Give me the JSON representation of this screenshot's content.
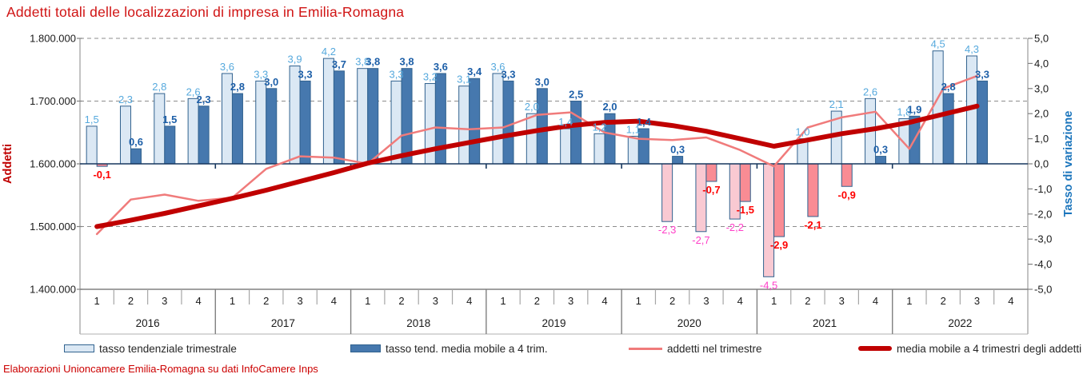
{
  "title": "Addetti totali delle localizzazioni di impresa in Emilia-Romagna",
  "footer": "Elaborazioni Unioncamere Emilia-Romagna su dati InfoCamere Inps",
  "legend": [
    {
      "label": "tasso tendenziale trimestrale",
      "swatch": "bar",
      "color": "#dbe8f4",
      "border": "#31628f"
    },
    {
      "label": "tasso tend. media mobile a 4 trim.",
      "swatch": "bar",
      "color": "#4678ae",
      "border": "#31628f"
    },
    {
      "label": "addetti nel trimestre",
      "swatch": "line",
      "color": "#f07b7b"
    },
    {
      "label": "media mobile a 4 trimestri degli addetti",
      "swatch": "line-thick",
      "color": "#c00000"
    }
  ],
  "chart_data": {
    "type": "combo bar + line, dual axis",
    "categories": [
      "2016-1",
      "2016-2",
      "2016-3",
      "2016-4",
      "2017-1",
      "2017-2",
      "2017-3",
      "2017-4",
      "2018-1",
      "2018-2",
      "2018-3",
      "2018-4",
      "2019-1",
      "2019-2",
      "2019-3",
      "2019-4",
      "2020-1",
      "2020-2",
      "2020-3",
      "2020-4",
      "2021-1",
      "2021-2",
      "2021-3",
      "2021-4",
      "2022-1",
      "2022-2",
      "2022-3",
      "2022-4"
    ],
    "years": [
      "2016",
      "2017",
      "2018",
      "2019",
      "2020",
      "2021",
      "2022"
    ],
    "quarters_per_year": [
      "1",
      "2",
      "3",
      "4"
    ],
    "left_axis": {
      "title": "Addetti",
      "tick_labels": [
        "1.800.000",
        "1.700.000",
        "1.600.000",
        "1.500.000",
        "1.400.000"
      ],
      "tick_values": [
        1800000,
        1700000,
        1600000,
        1500000,
        1400000
      ],
      "min": 1400000,
      "max": 1800000,
      "title_color": "#c00000"
    },
    "right_axis": {
      "title": "Tasso di variazione",
      "tick_labels": [
        "5,0",
        "4,0",
        "3,0",
        "2,0",
        "1,0",
        "0,0",
        "-1,0",
        "-2,0",
        "-3,0",
        "-4,0",
        "-5,0"
      ],
      "tick_values": [
        5,
        4,
        3,
        2,
        1,
        0,
        -1,
        -2,
        -3,
        -4,
        -5
      ],
      "min": -5,
      "max": 5,
      "title_color": "#1b75bc"
    },
    "grid": {
      "dashed_gridlines_at_left_values": [
        1800000,
        1700000,
        1500000
      ],
      "color": "#8c8c8c"
    },
    "series": [
      {
        "name": "tasso tendenziale trimestrale",
        "type": "bar",
        "axis": "right",
        "fill_positive": "#dbe8f4",
        "fill_negative": "#f9c9d2",
        "stroke": "#31628f",
        "label_color_positive": "#56a9dd",
        "label_color_negative": "#ff3fc8",
        "label_bold": false,
        "values": [
          1.5,
          2.3,
          2.8,
          2.6,
          3.6,
          3.3,
          3.9,
          4.2,
          3.8,
          3.3,
          3.2,
          3.1,
          3.6,
          2.0,
          1.4,
          1.2,
          1.1,
          -2.3,
          -2.7,
          -2.2,
          -4.5,
          1.0,
          2.1,
          2.6,
          1.8,
          4.5,
          4.3,
          null
        ]
      },
      {
        "name": "tasso tend. media mobile a 4 trim.",
        "type": "bar",
        "axis": "right",
        "fill_positive": "#4678ae",
        "fill_negative": "#f98c94",
        "stroke": "#31628f",
        "label_color_positive": "#1d5fa8",
        "label_color_negative": "#ff0000",
        "label_bold": true,
        "values": [
          -0.1,
          0.6,
          1.5,
          2.3,
          2.8,
          3.0,
          3.3,
          3.7,
          3.8,
          3.8,
          3.6,
          3.4,
          3.3,
          3.0,
          2.5,
          2.0,
          1.4,
          0.3,
          -0.7,
          -1.5,
          -2.9,
          -2.1,
          -0.9,
          0.3,
          1.9,
          2.8,
          3.3,
          null
        ]
      },
      {
        "name": "addetti nel trimestre",
        "type": "line",
        "axis": "left",
        "color": "#f07b7b",
        "width": 2.5,
        "estimated": true,
        "values": [
          1488000,
          1543000,
          1551000,
          1541000,
          1546000,
          1592000,
          1612000,
          1610000,
          1600000,
          1645000,
          1658000,
          1655000,
          1658000,
          1678000,
          1682000,
          1650000,
          1640000,
          1638000,
          1642000,
          1622000,
          1596000,
          1658000,
          1674000,
          1683000,
          1624000,
          1720000,
          1740000,
          null
        ]
      },
      {
        "name": "media mobile a 4 trimestri degli addetti",
        "type": "line",
        "axis": "left",
        "color": "#c00000",
        "width": 6,
        "estimated": true,
        "values": [
          1500000,
          1510000,
          1521000,
          1533000,
          1545000,
          1558000,
          1572000,
          1586000,
          1601000,
          1613000,
          1624000,
          1634000,
          1644000,
          1653000,
          1661000,
          1666000,
          1668000,
          1661000,
          1652000,
          1640000,
          1628000,
          1638000,
          1648000,
          1656000,
          1666000,
          1679000,
          1692000,
          null
        ]
      }
    ]
  }
}
